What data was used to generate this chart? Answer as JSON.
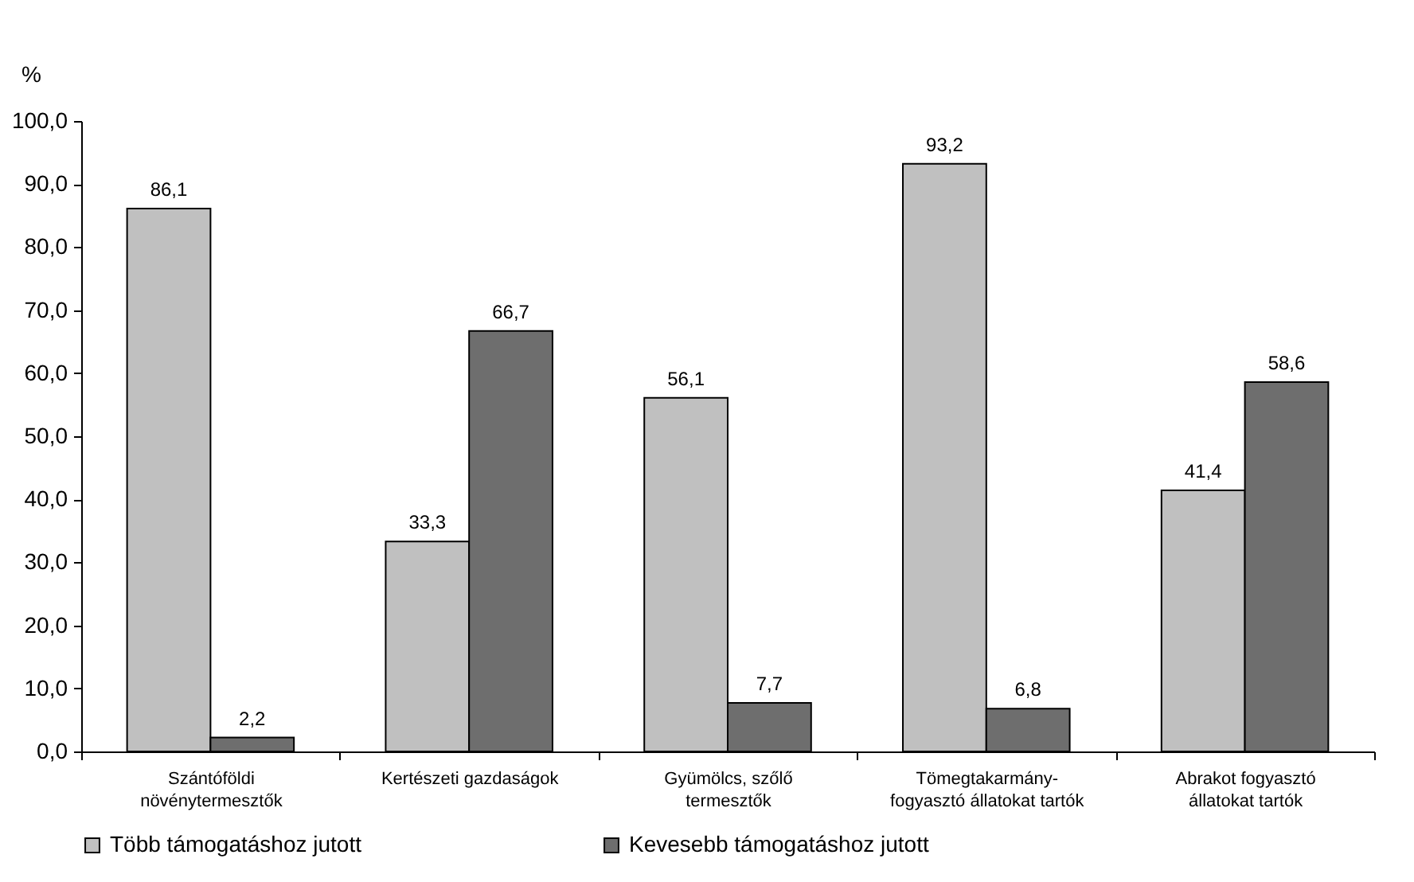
{
  "chart_data": {
    "type": "bar",
    "ylabel": "%",
    "categories": [
      "Szántóföldi\nnövénytermesztők",
      "Kertészeti gazdaságok",
      "Gyümölcs, szőlő\ntermesztők",
      "Tömegtakarmány-\nfogyasztó állatokat tartók",
      "Abrakot fogyasztó\nállatokat tartók"
    ],
    "series": [
      {
        "name": "Több támogatáshoz jutott",
        "color": "#c0c0c0",
        "values": [
          86.1,
          33.3,
          56.1,
          93.2,
          41.4
        ],
        "value_labels": [
          "86,1",
          "33,3",
          "56,1",
          "93,2",
          "41,4"
        ]
      },
      {
        "name": "Kevesebb támogatáshoz jutott",
        "color": "#6e6e6e",
        "values": [
          2.2,
          66.7,
          7.7,
          6.8,
          58.6
        ],
        "value_labels": [
          "2,2",
          "66,7",
          "7,7",
          "6,8",
          "58,6"
        ]
      }
    ],
    "ylim": [
      0,
      100
    ],
    "yticks": [
      {
        "value": 0,
        "label": "0,0"
      },
      {
        "value": 10,
        "label": "10,0"
      },
      {
        "value": 20,
        "label": "20,0"
      },
      {
        "value": 30,
        "label": "30,0"
      },
      {
        "value": 40,
        "label": "40,0"
      },
      {
        "value": 50,
        "label": "50,0"
      },
      {
        "value": 60,
        "label": "60,0"
      },
      {
        "value": 70,
        "label": "70,0"
      },
      {
        "value": 80,
        "label": "80,0"
      },
      {
        "value": 90,
        "label": "90,0"
      },
      {
        "value": 100,
        "label": "100,0"
      }
    ],
    "grid": false,
    "legend": "bottom"
  }
}
